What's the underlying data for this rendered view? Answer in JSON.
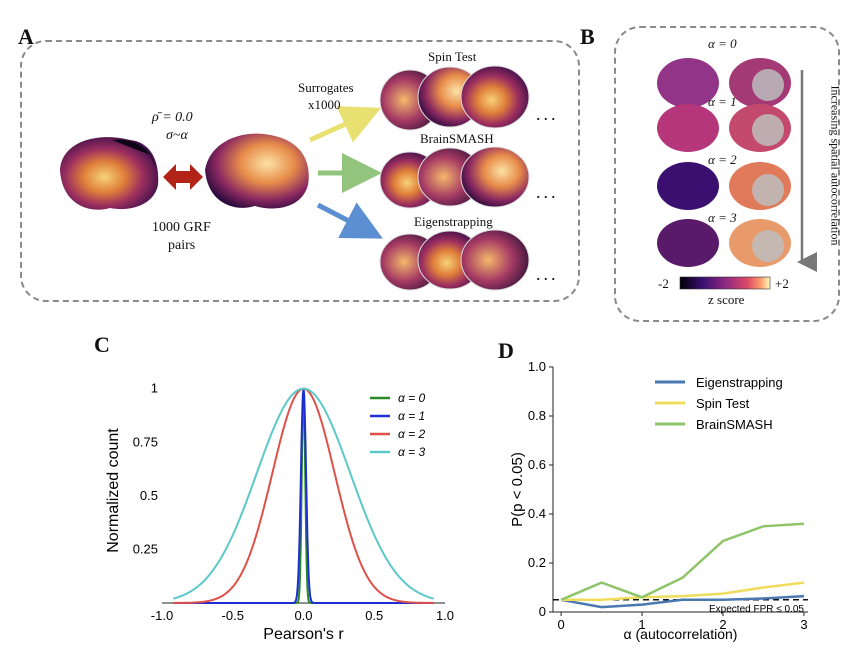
{
  "panels": {
    "a": "A",
    "b": "B",
    "c": "C",
    "d": "D"
  },
  "panel_a": {
    "rho": "ρ̄ = 0.0",
    "sigma": "σ~α",
    "grf_line1": "1000 GRF",
    "grf_line2": "pairs",
    "surrogates_line1": "Surrogates",
    "surrogates_line2": "x1000",
    "methods": [
      "Spin Test",
      "BrainSMASH",
      "Eigenstrapping"
    ],
    "ellipsis": "...",
    "colors": {
      "spin": "#e8e070",
      "smash": "#93c47d",
      "eigen": "#5b8fd1",
      "arrow": "#b22418"
    }
  },
  "panel_b": {
    "alpha_labels": [
      "α = 0",
      "α = 1",
      "α = 2",
      "α = 3"
    ],
    "side_label": "Increasing spatial autocorrelation",
    "cbar_min": "-2",
    "cbar_max": "+2",
    "cbar_label": "z score"
  },
  "chart_data": [
    {
      "type": "line",
      "panel": "C",
      "xlabel": "Pearson's r",
      "ylabel": "Normalized count",
      "xlim": [
        -1.0,
        1.0
      ],
      "ylim": [
        0,
        1.05
      ],
      "xticks": [
        "-1.0",
        "-0.5",
        "0.0",
        "0.5",
        "1.0"
      ],
      "yticks": [
        "0.25",
        "0.5",
        "0.75",
        "1"
      ],
      "ytick_values": [
        0.25,
        0.5,
        0.75,
        1.0
      ],
      "series": [
        {
          "name": "α = 0",
          "color": "#2a8a2a",
          "sigma": 0.012
        },
        {
          "name": "α = 1",
          "color": "#1f2ed1",
          "sigma": 0.018
        },
        {
          "name": "α = 2",
          "color": "#e0504a",
          "sigma": 0.22
        },
        {
          "name": "α = 3",
          "color": "#5cc9c9",
          "sigma": 0.33
        }
      ]
    },
    {
      "type": "line",
      "panel": "D",
      "xlabel": "α (autocorrelation)",
      "ylabel": "P(p < 0.05)",
      "xlim": [
        -0.1,
        3.05
      ],
      "ylim": [
        0,
        1.0
      ],
      "xticks": [
        "0",
        "1",
        "2",
        "3"
      ],
      "yticks": [
        "0",
        "0.2",
        "0.4",
        "0.6",
        "0.8",
        "1.0"
      ],
      "x": [
        0,
        0.5,
        1,
        1.5,
        2,
        2.5,
        3
      ],
      "series": [
        {
          "name": "Eigenstrapping",
          "color": "#4a78b0",
          "values": [
            0.05,
            0.02,
            0.03,
            0.05,
            0.05,
            0.055,
            0.065
          ]
        },
        {
          "name": "Spin Test",
          "color": "#f0dc5c",
          "values": [
            0.05,
            0.05,
            0.06,
            0.065,
            0.075,
            0.1,
            0.12
          ]
        },
        {
          "name": "BrainSMASH",
          "color": "#8fc46a",
          "values": [
            0.05,
            0.12,
            0.06,
            0.14,
            0.29,
            0.35,
            0.36
          ]
        }
      ],
      "reference_line": {
        "value": 0.05,
        "label": "Expected FPR ≤ 0.05"
      }
    }
  ]
}
